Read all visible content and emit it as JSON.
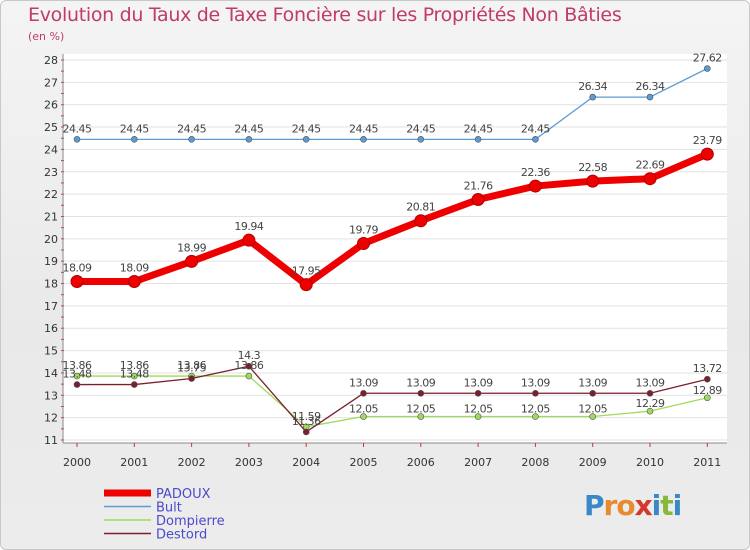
{
  "chart_data": {
    "type": "line",
    "title": "Evolution du Taux de Taxe Foncière sur les Propriétés Non Bâties",
    "ylabel": "(en %)",
    "xlabel": "",
    "ylim": [
      11,
      28
    ],
    "yticks": [
      11,
      12,
      13,
      14,
      15,
      16,
      17,
      18,
      19,
      20,
      21,
      22,
      23,
      24,
      25,
      26,
      27,
      28
    ],
    "categories": [
      "2000",
      "2001",
      "2002",
      "2003",
      "2004",
      "2005",
      "2006",
      "2007",
      "2008",
      "2009",
      "2010",
      "2011"
    ],
    "grid": "horizontal",
    "legend": "bottom-left",
    "series": [
      {
        "name": "PADOUX",
        "color": "#ee0000",
        "values": [
          18.09,
          18.09,
          18.99,
          19.94,
          17.95,
          19.79,
          20.81,
          21.76,
          22.36,
          22.58,
          22.69,
          23.79
        ],
        "labels": [
          "18.09",
          "18.09",
          "18.99",
          "19.94",
          "17.95",
          "19.79",
          "20.81",
          "21.76",
          "22.36",
          "22.58",
          "22.69",
          "23.79"
        ]
      },
      {
        "name": "Bult",
        "color": "#5b9bd5",
        "values": [
          24.45,
          24.45,
          24.45,
          24.45,
          24.45,
          24.45,
          24.45,
          24.45,
          24.45,
          26.34,
          26.34,
          27.62
        ],
        "labels": [
          "24.45",
          "24.45",
          "24.45",
          "24.45",
          "24.45",
          "24.45",
          "24.45",
          "24.45",
          "24.45",
          "26.34",
          "26.34",
          "27.62"
        ]
      },
      {
        "name": "Dompierre",
        "color": "#9edb5a",
        "values": [
          13.86,
          13.86,
          13.86,
          13.86,
          11.59,
          12.05,
          12.05,
          12.05,
          12.05,
          12.05,
          12.29,
          12.89
        ],
        "labels": [
          "13.86",
          "13.86",
          "13.86",
          "13.86",
          "11.59",
          "12.05",
          "12.05",
          "12.05",
          "12.05",
          "12.05",
          "12.29",
          "12.89"
        ]
      },
      {
        "name": "Destord",
        "color": "#7a1f2e",
        "values": [
          13.48,
          13.48,
          13.75,
          14.3,
          11.36,
          13.09,
          13.09,
          13.09,
          13.09,
          13.09,
          13.09,
          13.72
        ],
        "labels": [
          "13.48",
          "13.48",
          "13.75",
          "14.3",
          "11.36",
          "13.09",
          "13.09",
          "13.09",
          "13.09",
          "13.09",
          "13.09",
          "13.72"
        ]
      }
    ]
  },
  "logo": {
    "parts": [
      "P",
      "r",
      "o",
      "x",
      "i",
      "t",
      "i"
    ]
  }
}
